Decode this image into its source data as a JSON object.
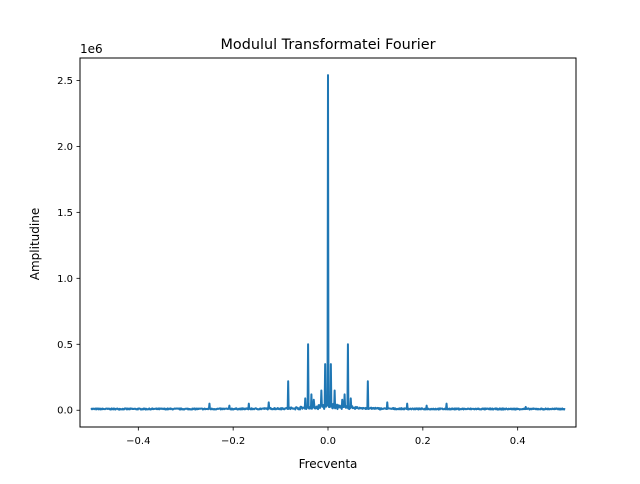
{
  "chart_data": {
    "type": "line",
    "title": "Modulul Transformatei Fourier",
    "xlabel": "Frecventa",
    "ylabel": "Amplitudine",
    "y_offset_label": "1e6",
    "xlim": [
      -0.523,
      0.523
    ],
    "ylim": [
      -0.127,
      2.67
    ],
    "xticks": [
      -0.4,
      -0.2,
      0.0,
      0.2,
      0.4
    ],
    "xtick_labels": [
      "−0.4",
      "−0.2",
      "0.0",
      "0.2",
      "0.4"
    ],
    "yticks": [
      0.0,
      0.5,
      1.0,
      1.5,
      2.0,
      2.5
    ],
    "ytick_labels": [
      "0.0",
      "0.5",
      "1.0",
      "1.5",
      "2.0",
      "2.5"
    ],
    "grid": false,
    "series_color": "#1f77b4",
    "baseline": 0.01,
    "x_range": [
      -0.5,
      0.5
    ],
    "peaks": [
      {
        "x": 0.0,
        "y": 2.54
      },
      {
        "x": -0.006,
        "y": 0.35
      },
      {
        "x": 0.006,
        "y": 0.35
      },
      {
        "x": -0.042,
        "y": 0.5
      },
      {
        "x": 0.042,
        "y": 0.5
      },
      {
        "x": -0.084,
        "y": 0.22
      },
      {
        "x": 0.084,
        "y": 0.22
      },
      {
        "x": -0.014,
        "y": 0.15
      },
      {
        "x": 0.014,
        "y": 0.15
      },
      {
        "x": -0.035,
        "y": 0.12
      },
      {
        "x": 0.035,
        "y": 0.12
      },
      {
        "x": -0.03,
        "y": 0.08
      },
      {
        "x": 0.03,
        "y": 0.08
      },
      {
        "x": -0.048,
        "y": 0.09
      },
      {
        "x": 0.048,
        "y": 0.09
      },
      {
        "x": -0.125,
        "y": 0.06
      },
      {
        "x": 0.125,
        "y": 0.06
      },
      {
        "x": -0.167,
        "y": 0.05
      },
      {
        "x": 0.167,
        "y": 0.05
      },
      {
        "x": -0.208,
        "y": 0.035
      },
      {
        "x": 0.208,
        "y": 0.035
      },
      {
        "x": -0.25,
        "y": 0.05
      },
      {
        "x": 0.25,
        "y": 0.05
      },
      {
        "x": 0.417,
        "y": 0.025
      }
    ]
  }
}
